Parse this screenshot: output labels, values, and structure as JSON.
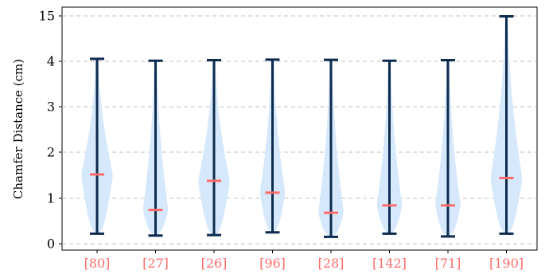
{
  "chart_data": {
    "type": "violin",
    "ylabel": "Chamfer Distance (cm)",
    "y_tick_labels": [
      "0",
      "1",
      "2",
      "3",
      "4",
      "15"
    ],
    "y_axis_note": "broken axis: top tick reads 15",
    "grid": "horizontal dashed",
    "categories": [
      "[80]",
      "[27]",
      "[26]",
      "[96]",
      "[28]",
      "[142]",
      "[71]",
      "[190]"
    ],
    "category_label_color": "#ff6b6b",
    "min": [
      0.22,
      0.18,
      0.19,
      0.25,
      0.15,
      0.22,
      0.16,
      0.22
    ],
    "max": [
      4.6,
      4.15,
      4.3,
      4.4,
      4.35,
      4.15,
      4.3,
      14.9
    ],
    "median": [
      1.52,
      0.74,
      1.38,
      1.12,
      0.68,
      0.84,
      0.84,
      1.44
    ],
    "colors": {
      "violin_fill": "#d6e8fb",
      "whisker": "#0d2b4e",
      "median": "#ff6b6b",
      "grid": "#c0c0c0"
    }
  }
}
